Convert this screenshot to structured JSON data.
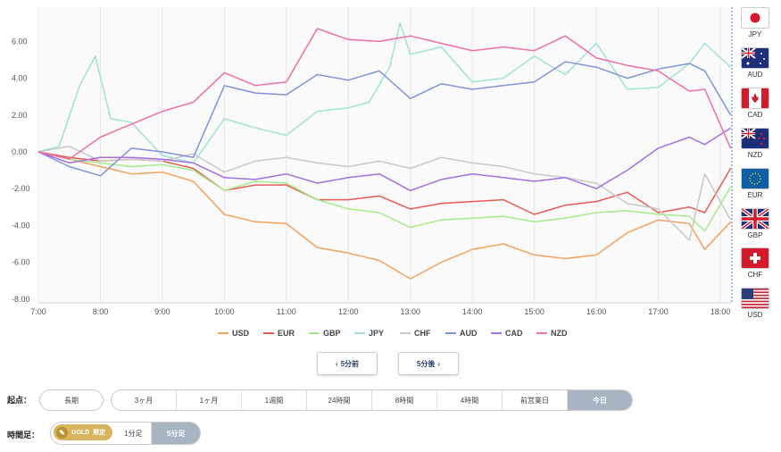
{
  "chart_data": {
    "type": "line",
    "ylim": [
      -8,
      8
    ],
    "xlim": [
      "7:00",
      "18:10"
    ],
    "yticks": [
      "6.00",
      "4.00",
      "2.00",
      "0.00",
      "-2.00",
      "-4.00",
      "-6.00",
      "-8.00"
    ],
    "ytick_values": [
      6,
      4,
      2,
      0,
      -2,
      -4,
      -6,
      -8
    ],
    "xticks": [
      "7:00",
      "8:00",
      "9:00",
      "10:00",
      "11:00",
      "12:00",
      "13:00",
      "14:00",
      "15:00",
      "16:00",
      "17:00",
      "18:00"
    ],
    "xtick_hours": [
      7,
      8,
      9,
      10,
      11,
      12,
      13,
      14,
      15,
      16,
      17,
      18
    ],
    "grid": "vertical",
    "legend": "bottom",
    "series": [
      {
        "name": "USD",
        "color": "#f4a25c",
        "x": [
          "7:00",
          "7:30",
          "8:00",
          "8:30",
          "9:00",
          "9:30",
          "10:00",
          "10:30",
          "11:00",
          "11:30",
          "12:00",
          "12:30",
          "13:00",
          "13:30",
          "14:00",
          "14:30",
          "15:00",
          "15:30",
          "16:00",
          "16:30",
          "17:00",
          "17:30",
          "17:45",
          "18:10"
        ],
        "y": [
          0.0,
          -0.4,
          -0.8,
          -1.2,
          -1.1,
          -1.6,
          -3.4,
          -3.8,
          -3.9,
          -5.2,
          -5.5,
          -5.9,
          -6.9,
          -6.0,
          -5.3,
          -5.0,
          -5.6,
          -5.8,
          -5.6,
          -4.4,
          -3.7,
          -3.9,
          -5.3,
          -3.8
        ]
      },
      {
        "name": "EUR",
        "color": "#ea5a55",
        "x": [
          "7:00",
          "7:30",
          "8:00",
          "8:30",
          "9:00",
          "9:30",
          "10:00",
          "10:30",
          "11:00",
          "11:30",
          "12:00",
          "12:30",
          "13:00",
          "13:30",
          "14:00",
          "14:30",
          "15:00",
          "15:30",
          "16:00",
          "16:30",
          "17:00",
          "17:30",
          "17:45",
          "18:10"
        ],
        "y": [
          0.0,
          -0.3,
          -0.5,
          -0.4,
          -0.5,
          -0.9,
          -2.1,
          -1.8,
          -1.8,
          -2.6,
          -2.6,
          -2.4,
          -3.1,
          -2.8,
          -2.7,
          -2.6,
          -3.4,
          -2.9,
          -2.7,
          -2.2,
          -3.3,
          -3.0,
          -3.3,
          -0.9
        ]
      },
      {
        "name": "GBP",
        "color": "#a3ec8a",
        "x": [
          "7:00",
          "7:30",
          "8:00",
          "8:30",
          "9:00",
          "9:30",
          "10:00",
          "10:30",
          "11:00",
          "11:30",
          "12:00",
          "12:30",
          "13:00",
          "13:30",
          "14:00",
          "14:30",
          "15:00",
          "15:30",
          "16:00",
          "16:30",
          "17:00",
          "17:30",
          "17:45",
          "18:10"
        ],
        "y": [
          0.0,
          -0.4,
          -0.6,
          -0.8,
          -0.7,
          -1.0,
          -2.1,
          -1.6,
          -1.7,
          -2.6,
          -3.1,
          -3.3,
          -4.1,
          -3.7,
          -3.6,
          -3.5,
          -3.8,
          -3.6,
          -3.3,
          -3.2,
          -3.4,
          -3.5,
          -4.3,
          -1.9
        ]
      },
      {
        "name": "JPY",
        "color": "#9ee3d6",
        "x": [
          "7:00",
          "7:20",
          "7:40",
          "7:55",
          "8:10",
          "8:30",
          "9:00",
          "9:30",
          "10:00",
          "10:30",
          "11:00",
          "11:30",
          "12:00",
          "12:20",
          "12:40",
          "12:50",
          "13:00",
          "13:30",
          "14:00",
          "14:30",
          "15:00",
          "15:30",
          "16:00",
          "16:30",
          "17:00",
          "17:30",
          "17:45",
          "18:10"
        ],
        "y": [
          0.0,
          0.3,
          3.6,
          5.2,
          1.8,
          1.6,
          -0.2,
          -0.6,
          1.8,
          1.3,
          0.9,
          2.2,
          2.4,
          2.7,
          4.6,
          7.0,
          5.3,
          5.7,
          3.8,
          4.0,
          5.2,
          4.2,
          5.9,
          3.4,
          3.5,
          4.8,
          5.9,
          4.6
        ]
      },
      {
        "name": "CHF",
        "color": "#c8c8c8",
        "x": [
          "7:00",
          "7:30",
          "8:00",
          "8:30",
          "9:00",
          "9:30",
          "10:00",
          "10:30",
          "11:00",
          "11:30",
          "12:00",
          "12:30",
          "13:00",
          "13:30",
          "14:00",
          "14:30",
          "15:00",
          "15:30",
          "16:00",
          "16:30",
          "17:00",
          "17:30",
          "17:45",
          "18:10"
        ],
        "y": [
          0.0,
          0.3,
          -0.5,
          -0.4,
          -0.5,
          -0.1,
          -1.1,
          -0.5,
          -0.3,
          -0.6,
          -0.8,
          -0.5,
          -0.9,
          -0.3,
          -0.6,
          -0.8,
          -1.2,
          -1.4,
          -1.7,
          -2.8,
          -3.1,
          -4.8,
          -1.2,
          -3.7
        ]
      },
      {
        "name": "AUD",
        "color": "#8094dc",
        "x": [
          "7:00",
          "7:30",
          "8:00",
          "8:30",
          "9:00",
          "9:30",
          "10:00",
          "10:30",
          "11:00",
          "11:30",
          "12:00",
          "12:30",
          "13:00",
          "13:30",
          "14:00",
          "14:30",
          "15:00",
          "15:30",
          "16:00",
          "16:30",
          "17:00",
          "17:30",
          "17:45",
          "18:10"
        ],
        "y": [
          0.0,
          -0.8,
          -1.3,
          0.2,
          0.0,
          -0.3,
          3.6,
          3.2,
          3.1,
          4.2,
          3.9,
          4.4,
          2.9,
          3.7,
          3.4,
          3.6,
          3.8,
          4.9,
          4.6,
          4.0,
          4.5,
          4.8,
          4.4,
          2.0
        ]
      },
      {
        "name": "CAD",
        "color": "#a56ee2",
        "x": [
          "7:00",
          "7:30",
          "8:00",
          "8:30",
          "9:00",
          "9:30",
          "10:00",
          "10:30",
          "11:00",
          "11:30",
          "12:00",
          "12:30",
          "13:00",
          "13:30",
          "14:00",
          "14:30",
          "15:00",
          "15:30",
          "16:00",
          "16:30",
          "17:00",
          "17:30",
          "17:45",
          "18:10"
        ],
        "y": [
          0.0,
          -0.6,
          -0.3,
          -0.3,
          -0.4,
          -0.6,
          -1.4,
          -1.5,
          -1.2,
          -1.7,
          -1.4,
          -1.2,
          -2.1,
          -1.5,
          -1.2,
          -1.4,
          -1.6,
          -1.4,
          -2.0,
          -1.0,
          0.2,
          0.8,
          0.4,
          1.3
        ]
      },
      {
        "name": "NZD",
        "color": "#ef6fa7",
        "x": [
          "7:00",
          "7:30",
          "8:00",
          "8:30",
          "9:00",
          "9:30",
          "10:00",
          "10:30",
          "11:00",
          "11:30",
          "12:00",
          "12:30",
          "13:00",
          "13:30",
          "14:00",
          "14:30",
          "15:00",
          "15:30",
          "16:00",
          "16:30",
          "17:00",
          "17:30",
          "17:45",
          "18:10"
        ],
        "y": [
          0.0,
          -0.4,
          0.8,
          1.5,
          2.2,
          2.7,
          4.3,
          3.6,
          3.8,
          6.7,
          6.1,
          6.0,
          6.3,
          5.9,
          5.5,
          5.7,
          5.5,
          6.3,
          5.1,
          4.7,
          4.4,
          3.3,
          3.4,
          0.2
        ]
      }
    ]
  },
  "flags": [
    {
      "code": "JPY",
      "icon": "jp-flag"
    },
    {
      "code": "AUD",
      "icon": "au-flag"
    },
    {
      "code": "CAD",
      "icon": "ca-flag"
    },
    {
      "code": "NZD",
      "icon": "nz-flag"
    },
    {
      "code": "EUR",
      "icon": "eu-flag"
    },
    {
      "code": "GBP",
      "icon": "gb-flag"
    },
    {
      "code": "CHF",
      "icon": "ch-flag"
    },
    {
      "code": "USD",
      "icon": "us-flag"
    }
  ],
  "nav": {
    "prev": "5分前",
    "next": "5分後"
  },
  "period": {
    "label": "起点：",
    "long_term": "長期",
    "options": [
      "3ヶ月",
      "1ヶ月",
      "1週間",
      "24時間",
      "8時間",
      "4時間",
      "前営業日",
      "今日"
    ],
    "selected": "今日"
  },
  "timeframe": {
    "label": "時間足：",
    "gold_text": "GOLD",
    "gold_badge": "限定",
    "options": [
      "1分足",
      "5分足"
    ],
    "selected": "5分足"
  }
}
